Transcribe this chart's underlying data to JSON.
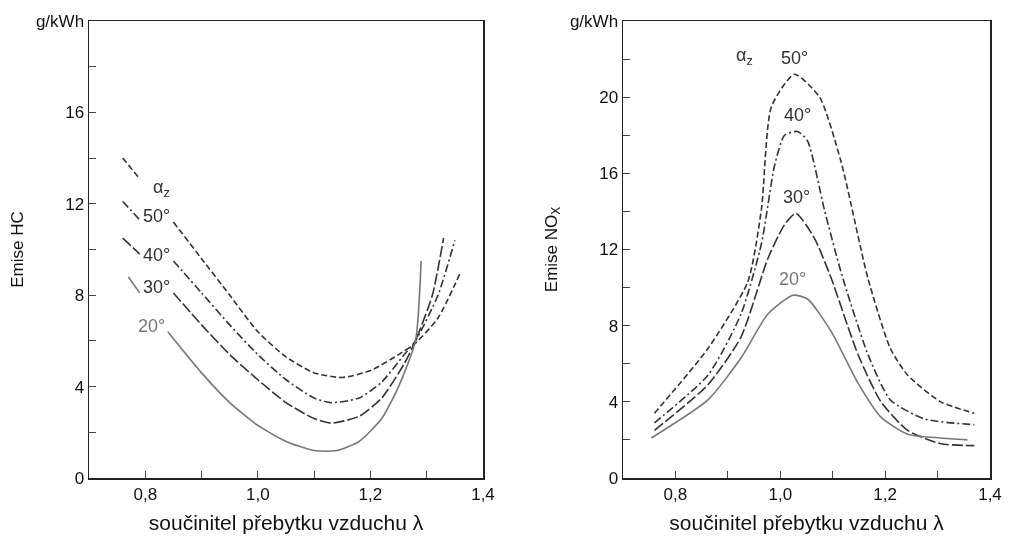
{
  "chart_data": [
    {
      "type": "line",
      "xlabel": "součinitel přebytku vzduchu λ",
      "ylabel": "Emise HC",
      "xlim": [
        0.7,
        1.4
      ],
      "xticks": [
        {
          "value": 0.8,
          "label": "0,8"
        },
        {
          "value": 0.9,
          "label": null
        },
        {
          "value": 1.0,
          "label": "1,0"
        },
        {
          "value": 1.1,
          "label": null
        },
        {
          "value": 1.2,
          "label": "1,2"
        },
        {
          "value": 1.3,
          "label": null
        },
        {
          "value": 1.4,
          "label": "1,4"
        }
      ],
      "ylim": [
        0,
        20
      ],
      "yticks": [
        0,
        {
          "value": 2,
          "label": null
        },
        4,
        {
          "value": 6,
          "label": null
        },
        8,
        {
          "value": 10,
          "label": null
        },
        12,
        {
          "value": 14,
          "label": null
        },
        16,
        {
          "value": 18,
          "label": null
        },
        {
          "value": 20,
          "label": "g/kWh"
        }
      ],
      "grid": false,
      "marker": "none",
      "series": [
        {
          "name": "50°",
          "color": "#333333",
          "line_style": "dashed",
          "x": [
            0.76,
            0.79,
            0.82,
            0.85,
            0.9,
            0.95,
            1.0,
            1.05,
            1.1,
            1.15,
            1.2,
            1.25,
            1.28,
            1.32,
            1.36
          ],
          "values": [
            14.0,
            13.1,
            null,
            11.2,
            9.6,
            8.0,
            6.4,
            5.3,
            4.6,
            4.4,
            4.7,
            5.4,
            5.9,
            7.0,
            9.0
          ]
        },
        {
          "name": "40°",
          "color": "#333333",
          "line_style": "dashdot",
          "x": [
            0.76,
            0.79,
            0.82,
            0.85,
            0.9,
            0.95,
            1.0,
            1.05,
            1.1,
            1.13,
            1.18,
            1.22,
            1.26,
            1.28,
            1.32,
            1.35
          ],
          "values": [
            12.1,
            11.3,
            null,
            9.5,
            8.1,
            6.7,
            5.4,
            4.3,
            3.5,
            3.3,
            3.5,
            4.2,
            5.4,
            6.0,
            8.0,
            10.4
          ]
        },
        {
          "name": "30°",
          "color": "#333333",
          "line_style": "longdash",
          "x": [
            0.76,
            0.79,
            0.82,
            0.85,
            0.9,
            0.95,
            1.0,
            1.05,
            1.1,
            1.13,
            1.18,
            1.22,
            1.26,
            1.28,
            1.31,
            1.33
          ],
          "values": [
            10.5,
            9.8,
            null,
            8.1,
            6.7,
            5.4,
            4.3,
            3.3,
            2.6,
            2.4,
            2.7,
            3.5,
            5.0,
            6.0,
            8.0,
            10.5
          ]
        },
        {
          "name": "20°",
          "color": "#777777",
          "line_style": "solid",
          "x": [
            0.77,
            0.79,
            0.81,
            0.84,
            0.9,
            0.95,
            1.0,
            1.05,
            1.1,
            1.14,
            1.18,
            1.22,
            1.25,
            1.28,
            1.29
          ],
          "values": [
            8.8,
            8.1,
            null,
            6.4,
            4.6,
            3.3,
            2.3,
            1.6,
            1.2,
            1.2,
            1.6,
            2.6,
            4.0,
            6.0,
            9.5
          ]
        }
      ],
      "legend_title": "α$_{z}$"
    },
    {
      "type": "line",
      "xlabel": "součinitel přebytku vzduchu λ",
      "ylabel": "Emise NO$_{X}$",
      "xlim": [
        0.7,
        1.4
      ],
      "xticks": [
        {
          "value": 0.8,
          "label": "0,8"
        },
        {
          "value": 0.9,
          "label": null
        },
        {
          "value": 1.0,
          "label": "1,0"
        },
        {
          "value": 1.1,
          "label": null
        },
        {
          "value": 1.2,
          "label": "1,2"
        },
        {
          "value": 1.3,
          "label": null
        },
        {
          "value": 1.4,
          "label": "1,4"
        }
      ],
      "ylim": [
        0,
        24
      ],
      "yticks": [
        0,
        {
          "value": 2,
          "label": null
        },
        4,
        {
          "value": 6,
          "label": null
        },
        8,
        {
          "value": 10,
          "label": null
        },
        12,
        {
          "value": 14,
          "label": null
        },
        16,
        {
          "value": 18,
          "label": null
        },
        20,
        {
          "value": 22,
          "label": null
        },
        {
          "value": 24,
          "label": "g/kWh"
        }
      ],
      "grid": false,
      "marker": "none",
      "series": [
        {
          "name": "50°",
          "color": "#333333",
          "line_style": "dashed",
          "x": [
            0.76,
            0.862,
            0.938,
            0.964,
            0.983,
            1.027,
            1.075,
            1.116,
            1.167,
            1.21,
            1.243,
            1.306,
            1.37
          ],
          "values": [
            3.4,
            6.8,
            10.3,
            14.1,
            19.5,
            21.2,
            20.0,
            16.6,
            10.5,
            6.8,
            5.4,
            4.0,
            3.4
          ]
        },
        {
          "name": "40°",
          "color": "#333333",
          "line_style": "dashdot",
          "x": [
            0.76,
            0.862,
            0.925,
            0.964,
            0.989,
            1.008,
            1.033,
            1.052,
            1.084,
            1.116,
            1.167,
            1.21,
            1.275,
            1.37
          ],
          "values": [
            2.9,
            5.4,
            8.6,
            12.3,
            16.4,
            18.0,
            18.2,
            17.7,
            14.1,
            10.8,
            6.5,
            4.1,
            3.1,
            2.8
          ]
        },
        {
          "name": "30°",
          "color": "#333333",
          "line_style": "longdash",
          "x": [
            0.76,
            0.862,
            0.925,
            0.976,
            1.008,
            1.03,
            1.065,
            1.097,
            1.148,
            1.192,
            1.243,
            1.306,
            1.37
          ],
          "values": [
            2.5,
            4.9,
            7.4,
            11.5,
            13.3,
            13.9,
            12.6,
            10.5,
            6.5,
            4.0,
            2.5,
            1.8,
            1.7
          ]
        },
        {
          "name": "20°",
          "color": "#777777",
          "line_style": "solid",
          "x": [
            0.754,
            0.862,
            0.925,
            0.976,
            1.024,
            1.052,
            1.097,
            1.148,
            1.192,
            1.243,
            1.306,
            1.357
          ],
          "values": [
            2.1,
            4.1,
            6.3,
            8.6,
            9.6,
            9.4,
            7.7,
            5.0,
            3.2,
            2.3,
            2.1,
            2.0
          ]
        }
      ],
      "legend_title": "α$_{z}$"
    }
  ]
}
